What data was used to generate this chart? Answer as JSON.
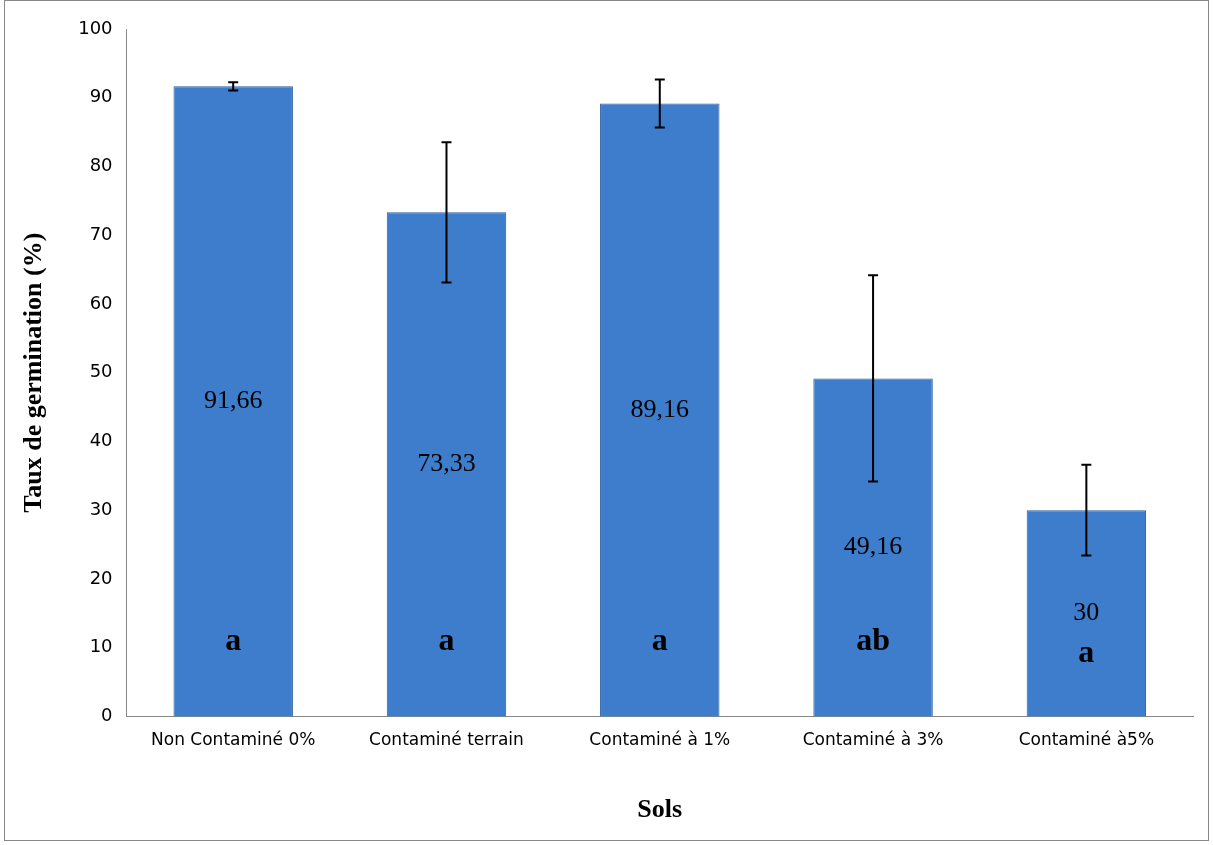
{
  "chart_data": {
    "type": "bar",
    "xlabel": "Sols",
    "ylabel": "Taux de germination (%)",
    "categories": [
      "Non Contaminé 0%",
      "Contaminé terrain",
      "Contaminé à 1%",
      "Contaminé à 3%",
      "Contaminé à5%"
    ],
    "values": [
      91.66,
      73.33,
      89.16,
      49.16,
      30
    ],
    "value_labels": [
      "91,66",
      "73,33",
      "89,16",
      "49,16",
      "30"
    ],
    "errors": [
      0.6,
      10.2,
      3.5,
      15,
      6.6
    ],
    "color": "#3d7dcc",
    "ylim": [
      0,
      100
    ],
    "yticks": [
      0,
      10,
      20,
      30,
      40,
      50,
      60,
      70,
      80,
      90,
      100
    ],
    "grid": false,
    "legend": false,
    "annotations": [
      "a",
      "a",
      "a",
      "ab",
      "a"
    ]
  }
}
